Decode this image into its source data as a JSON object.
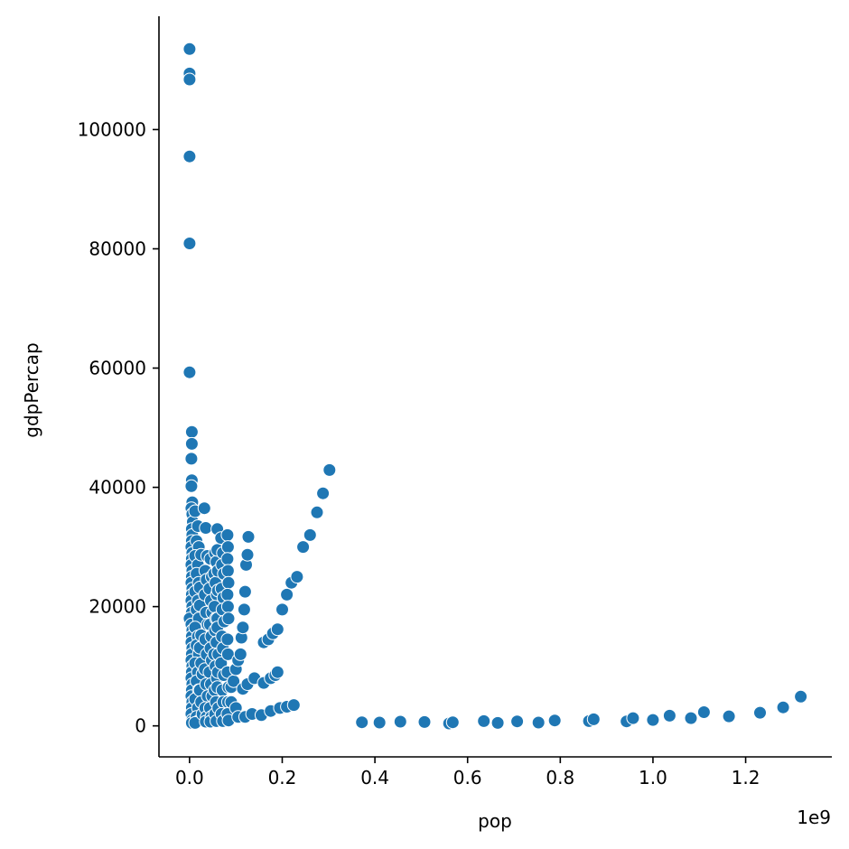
{
  "chart_data": {
    "type": "scatter",
    "xlabel": "pop",
    "ylabel": "gdpPercap",
    "x_offset_label": "1e9",
    "x_ticks": [
      0.0,
      0.2,
      0.4,
      0.6,
      0.8,
      1.0,
      1.2
    ],
    "x_tick_labels": [
      "0.0",
      "0.2",
      "0.4",
      "0.6",
      "0.8",
      "1.0",
      "1.2"
    ],
    "y_ticks": [
      0,
      20000,
      40000,
      60000,
      80000,
      100000
    ],
    "y_tick_labels": [
      "0",
      "20000",
      "40000",
      "60000",
      "80000",
      "100000"
    ],
    "xlim": [
      -0.066,
      1.386
    ],
    "ylim": [
      -5200,
      119000
    ],
    "grid": false,
    "legend": "none",
    "color": "#1f77b4",
    "x_units": "population in billions (1e9)",
    "points": [
      [
        0.0,
        113500
      ],
      [
        0.0,
        109400
      ],
      [
        0.0,
        108400
      ],
      [
        0.0,
        95500
      ],
      [
        0.0,
        80900
      ],
      [
        0.0,
        59300
      ],
      [
        0.005,
        49300
      ],
      [
        0.005,
        47300
      ],
      [
        0.004,
        44800
      ],
      [
        0.005,
        41200
      ],
      [
        0.004,
        40200
      ],
      [
        0.006,
        37500
      ],
      [
        0.004,
        36500
      ],
      [
        0.006,
        35500
      ],
      [
        0.007,
        34200
      ],
      [
        0.005,
        33000
      ],
      [
        0.006,
        32000
      ],
      [
        0.005,
        31000
      ],
      [
        0.004,
        30000
      ],
      [
        0.006,
        29000
      ],
      [
        0.005,
        28000
      ],
      [
        0.004,
        27000
      ],
      [
        0.006,
        26000
      ],
      [
        0.005,
        25000
      ],
      [
        0.004,
        24000
      ],
      [
        0.006,
        23000
      ],
      [
        0.005,
        22000
      ],
      [
        0.004,
        21000
      ],
      [
        0.006,
        20000
      ],
      [
        0.005,
        19000
      ],
      [
        0.0,
        18000
      ],
      [
        0.004,
        17000
      ],
      [
        0.006,
        16000
      ],
      [
        0.005,
        15000
      ],
      [
        0.004,
        14000
      ],
      [
        0.006,
        13000
      ],
      [
        0.005,
        12000
      ],
      [
        0.004,
        11000
      ],
      [
        0.006,
        10000
      ],
      [
        0.005,
        9000
      ],
      [
        0.004,
        8000
      ],
      [
        0.006,
        7000
      ],
      [
        0.005,
        6000
      ],
      [
        0.004,
        5000
      ],
      [
        0.006,
        4000
      ],
      [
        0.005,
        3000
      ],
      [
        0.004,
        2000
      ],
      [
        0.006,
        1000
      ],
      [
        0.005,
        500
      ],
      [
        0.012,
        36000
      ],
      [
        0.018,
        33500
      ],
      [
        0.015,
        31000
      ],
      [
        0.02,
        30000
      ],
      [
        0.012,
        28500
      ],
      [
        0.018,
        27000
      ],
      [
        0.015,
        25500
      ],
      [
        0.02,
        24000
      ],
      [
        0.012,
        22500
      ],
      [
        0.018,
        21000
      ],
      [
        0.015,
        19500
      ],
      [
        0.02,
        18000
      ],
      [
        0.012,
        16500
      ],
      [
        0.018,
        15000
      ],
      [
        0.015,
        13500
      ],
      [
        0.02,
        12000
      ],
      [
        0.012,
        10500
      ],
      [
        0.018,
        9000
      ],
      [
        0.015,
        7500
      ],
      [
        0.02,
        6000
      ],
      [
        0.012,
        4500
      ],
      [
        0.018,
        3000
      ],
      [
        0.015,
        1500
      ],
      [
        0.02,
        800
      ],
      [
        0.012,
        500
      ],
      [
        0.025,
        28700
      ],
      [
        0.022,
        23200
      ],
      [
        0.022,
        20200
      ],
      [
        0.025,
        15200
      ],
      [
        0.022,
        13100
      ],
      [
        0.025,
        10500
      ],
      [
        0.028,
        8700
      ],
      [
        0.022,
        6000
      ],
      [
        0.025,
        4000
      ],
      [
        0.028,
        2000
      ],
      [
        0.032,
        36500
      ],
      [
        0.035,
        33200
      ],
      [
        0.038,
        28500
      ],
      [
        0.034,
        26000
      ],
      [
        0.037,
        24500
      ],
      [
        0.033,
        22000
      ],
      [
        0.036,
        19000
      ],
      [
        0.039,
        17000
      ],
      [
        0.034,
        14500
      ],
      [
        0.037,
        12000
      ],
      [
        0.033,
        9500
      ],
      [
        0.036,
        7000
      ],
      [
        0.039,
        5000
      ],
      [
        0.034,
        3000
      ],
      [
        0.037,
        1500
      ],
      [
        0.035,
        700
      ],
      [
        0.045,
        28000
      ],
      [
        0.048,
        25000
      ],
      [
        0.043,
        23000
      ],
      [
        0.046,
        21000
      ],
      [
        0.049,
        19000
      ],
      [
        0.044,
        17000
      ],
      [
        0.047,
        15000
      ],
      [
        0.045,
        13000
      ],
      [
        0.048,
        11000
      ],
      [
        0.043,
        9000
      ],
      [
        0.046,
        7000
      ],
      [
        0.049,
        5000
      ],
      [
        0.044,
        3000
      ],
      [
        0.047,
        1500
      ],
      [
        0.045,
        700
      ],
      [
        0.055,
        29000
      ],
      [
        0.058,
        27500
      ],
      [
        0.053,
        25500
      ],
      [
        0.056,
        24000
      ],
      [
        0.059,
        22000
      ],
      [
        0.054,
        20000
      ],
      [
        0.057,
        18000
      ],
      [
        0.055,
        16000
      ],
      [
        0.058,
        14000
      ],
      [
        0.053,
        12000
      ],
      [
        0.056,
        10000
      ],
      [
        0.059,
        8000
      ],
      [
        0.054,
        6000
      ],
      [
        0.057,
        4000
      ],
      [
        0.055,
        2000
      ],
      [
        0.058,
        800
      ],
      [
        0.06,
        33000
      ],
      [
        0.06,
        29500
      ],
      [
        0.061,
        26000
      ],
      [
        0.061,
        22700
      ],
      [
        0.06,
        18000
      ],
      [
        0.06,
        16500
      ],
      [
        0.062,
        12000
      ],
      [
        0.061,
        9000
      ],
      [
        0.06,
        6500
      ],
      [
        0.062,
        3000
      ],
      [
        0.068,
        31500
      ],
      [
        0.072,
        29000
      ],
      [
        0.07,
        27000
      ],
      [
        0.074,
        25500
      ],
      [
        0.069,
        23000
      ],
      [
        0.073,
        21500
      ],
      [
        0.071,
        19500
      ],
      [
        0.075,
        17500
      ],
      [
        0.07,
        15000
      ],
      [
        0.072,
        13000
      ],
      [
        0.068,
        10500
      ],
      [
        0.074,
        8500
      ],
      [
        0.071,
        6000
      ],
      [
        0.073,
        4000
      ],
      [
        0.069,
        2000
      ],
      [
        0.072,
        800
      ],
      [
        0.082,
        32000
      ],
      [
        0.083,
        30000
      ],
      [
        0.082,
        28000
      ],
      [
        0.083,
        26000
      ],
      [
        0.084,
        24000
      ],
      [
        0.082,
        22000
      ],
      [
        0.083,
        20000
      ],
      [
        0.084,
        18000
      ],
      [
        0.082,
        14500
      ],
      [
        0.083,
        12000
      ],
      [
        0.082,
        9000
      ],
      [
        0.084,
        6500
      ],
      [
        0.083,
        4000
      ],
      [
        0.082,
        2000
      ],
      [
        0.084,
        900
      ],
      [
        0.09,
        6500
      ],
      [
        0.095,
        7500
      ],
      [
        0.1,
        9500
      ],
      [
        0.105,
        11000
      ],
      [
        0.11,
        12000
      ],
      [
        0.09,
        4000
      ],
      [
        0.1,
        3000
      ],
      [
        0.105,
        1500
      ],
      [
        0.112,
        14800
      ],
      [
        0.115,
        16500
      ],
      [
        0.118,
        19500
      ],
      [
        0.12,
        22500
      ],
      [
        0.122,
        27000
      ],
      [
        0.125,
        28700
      ],
      [
        0.127,
        31700
      ],
      [
        0.115,
        6200
      ],
      [
        0.125,
        7000
      ],
      [
        0.14,
        8000
      ],
      [
        0.16,
        7200
      ],
      [
        0.175,
        8000
      ],
      [
        0.185,
        8500
      ],
      [
        0.19,
        9000
      ],
      [
        0.12,
        1500
      ],
      [
        0.135,
        2000
      ],
      [
        0.155,
        1800
      ],
      [
        0.175,
        2500
      ],
      [
        0.195,
        3000
      ],
      [
        0.21,
        3200
      ],
      [
        0.225,
        3500
      ],
      [
        0.16,
        14000
      ],
      [
        0.17,
        14500
      ],
      [
        0.18,
        15500
      ],
      [
        0.19,
        16200
      ],
      [
        0.2,
        19500
      ],
      [
        0.21,
        22000
      ],
      [
        0.22,
        24000
      ],
      [
        0.232,
        25000
      ],
      [
        0.245,
        30000
      ],
      [
        0.26,
        32000
      ],
      [
        0.275,
        35800
      ],
      [
        0.288,
        39000
      ],
      [
        0.302,
        42900
      ],
      [
        0.372,
        600
      ],
      [
        0.41,
        550
      ],
      [
        0.455,
        700
      ],
      [
        0.507,
        650
      ],
      [
        0.56,
        400
      ],
      [
        0.568,
        600
      ],
      [
        0.635,
        800
      ],
      [
        0.665,
        500
      ],
      [
        0.707,
        750
      ],
      [
        0.753,
        550
      ],
      [
        0.788,
        900
      ],
      [
        0.862,
        800
      ],
      [
        0.872,
        1100
      ],
      [
        0.943,
        750
      ],
      [
        0.957,
        1300
      ],
      [
        1.0,
        1000
      ],
      [
        1.036,
        1700
      ],
      [
        1.082,
        1300
      ],
      [
        1.11,
        2300
      ],
      [
        1.164,
        1600
      ],
      [
        1.231,
        2200
      ],
      [
        1.281,
        3100
      ],
      [
        1.319,
        4900
      ]
    ]
  }
}
